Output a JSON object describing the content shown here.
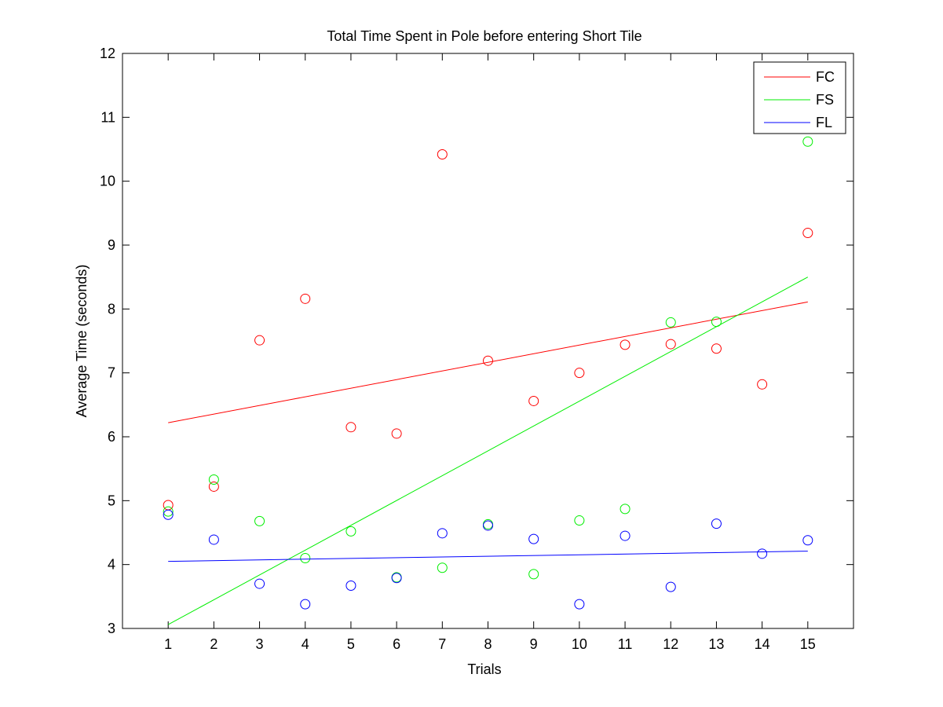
{
  "chart_data": {
    "type": "scatter",
    "title": "Total Time Spent in Pole before entering Short Tile",
    "xlabel": "Trials",
    "ylabel": "Average Time (seconds)",
    "xlim": [
      0,
      16
    ],
    "ylim": [
      3,
      12
    ],
    "xticks": [
      1,
      2,
      3,
      4,
      5,
      6,
      7,
      8,
      9,
      10,
      11,
      12,
      13,
      14,
      15
    ],
    "yticks": [
      3,
      4,
      5,
      6,
      7,
      8,
      9,
      10,
      11,
      12
    ],
    "grid": false,
    "legend_position": "top-right",
    "x": [
      1,
      2,
      3,
      4,
      5,
      6,
      7,
      8,
      9,
      10,
      11,
      12,
      13,
      14,
      15
    ],
    "series": [
      {
        "name": "FC",
        "color": "#ff0000",
        "values": [
          4.93,
          5.22,
          7.51,
          8.16,
          6.15,
          6.05,
          10.42,
          7.19,
          6.56,
          7.0,
          7.44,
          7.45,
          7.38,
          6.82,
          9.19
        ],
        "fit": {
          "x": [
            1,
            15
          ],
          "y": [
            6.22,
            8.11
          ]
        }
      },
      {
        "name": "FS",
        "color": "#00ee00",
        "values": [
          4.83,
          5.33,
          4.68,
          4.1,
          4.52,
          3.8,
          3.95,
          4.63,
          3.85,
          4.69,
          4.87,
          7.79,
          7.8,
          null,
          10.62
        ],
        "fit": {
          "x": [
            1,
            15
          ],
          "y": [
            3.06,
            8.5
          ]
        }
      },
      {
        "name": "FL",
        "color": "#0000ff",
        "values": [
          4.78,
          4.39,
          3.7,
          3.38,
          3.67,
          3.79,
          4.49,
          4.61,
          4.4,
          3.38,
          4.45,
          3.65,
          4.64,
          4.17,
          4.38
        ],
        "fit": {
          "x": [
            1,
            15
          ],
          "y": [
            4.05,
            4.21
          ]
        }
      }
    ]
  }
}
